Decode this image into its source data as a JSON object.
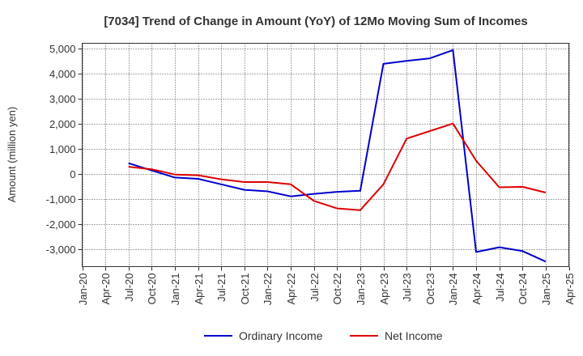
{
  "chart_data": {
    "type": "line",
    "title": "[7034]  Trend of Change in Amount (YoY) of 12Mo Moving Sum of Incomes",
    "xlabel": "",
    "ylabel": "Amount (million yen)",
    "x_ticks": [
      "Jan-20",
      "Apr-20",
      "Jul-20",
      "Oct-20",
      "Jan-21",
      "Apr-21",
      "Jul-21",
      "Oct-21",
      "Jan-22",
      "Apr-22",
      "Jul-22",
      "Oct-22",
      "Jan-23",
      "Apr-23",
      "Jul-23",
      "Oct-23",
      "Jan-24",
      "Apr-24",
      "Jul-24",
      "Oct-24",
      "Jan-25",
      "Apr-25"
    ],
    "y_ticks": [
      "-3,000",
      "-2,000",
      "-1,000",
      "0",
      "1,000",
      "2,000",
      "3,000",
      "4,000",
      "5,000"
    ],
    "ylim": [
      -3700,
      5200
    ],
    "grid": true,
    "legend_position": "bottom",
    "x": [
      "Jul-20",
      "Oct-20",
      "Jan-21",
      "Apr-21",
      "Jul-21",
      "Oct-21",
      "Jan-22",
      "Apr-22",
      "Jul-22",
      "Oct-22",
      "Jan-23",
      "Apr-23",
      "Jul-23",
      "Oct-23",
      "Jan-24",
      "Apr-24",
      "Jul-24",
      "Oct-24",
      "Jan-25"
    ],
    "series": [
      {
        "name": "Ordinary Income",
        "color": "#0000cc",
        "values": [
          420,
          130,
          -150,
          -200,
          -420,
          -640,
          -700,
          -900,
          -800,
          -720,
          -680,
          4380,
          4500,
          4600,
          4930,
          -3120,
          -2930,
          -3080,
          -3500
        ]
      },
      {
        "name": "Net Income",
        "color": "#dd0000",
        "values": [
          280,
          180,
          -30,
          -60,
          -220,
          -330,
          -330,
          -420,
          -1080,
          -1380,
          -1450,
          -420,
          1400,
          1700,
          2000,
          520,
          -540,
          -520,
          -750
        ]
      }
    ]
  }
}
